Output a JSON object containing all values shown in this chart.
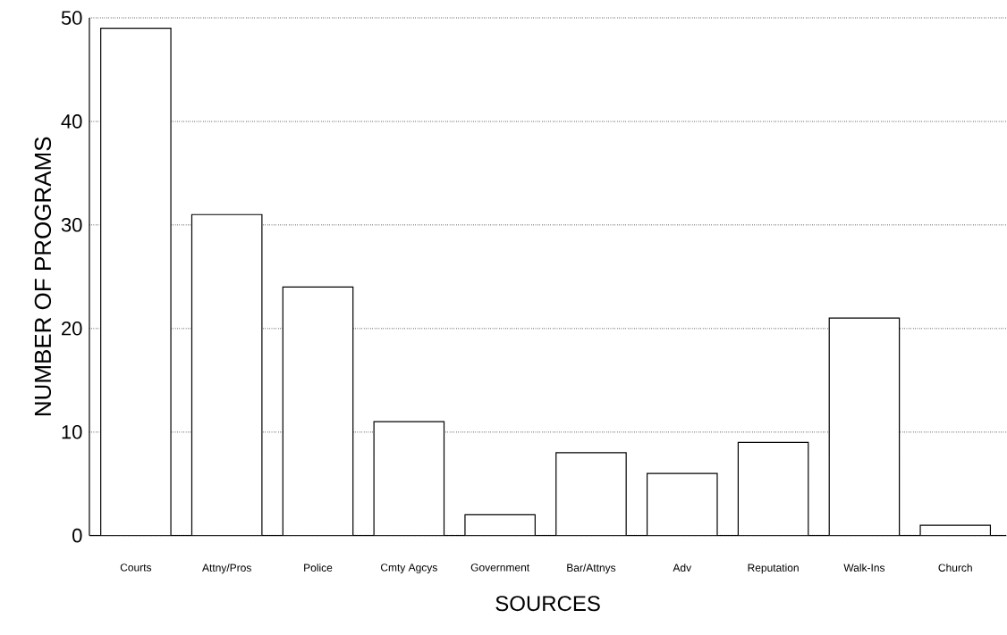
{
  "chart_data": {
    "type": "bar",
    "xlabel": "SOURCES",
    "ylabel": "NUMBER OF PROGRAMS",
    "categories": [
      "Courts",
      "Attny/Pros",
      "Police",
      "Cmty Agcys",
      "Government",
      "Bar/Attnys",
      "Adv",
      "Reputation",
      "Walk-Ins",
      "Church"
    ],
    "values": [
      49,
      31,
      24,
      11,
      2,
      8,
      6,
      9,
      21,
      1
    ],
    "color": "#ffffff",
    "ylim": [
      0,
      50
    ],
    "yticks": [
      0,
      10,
      20,
      30,
      40,
      50
    ],
    "grid": "y"
  }
}
